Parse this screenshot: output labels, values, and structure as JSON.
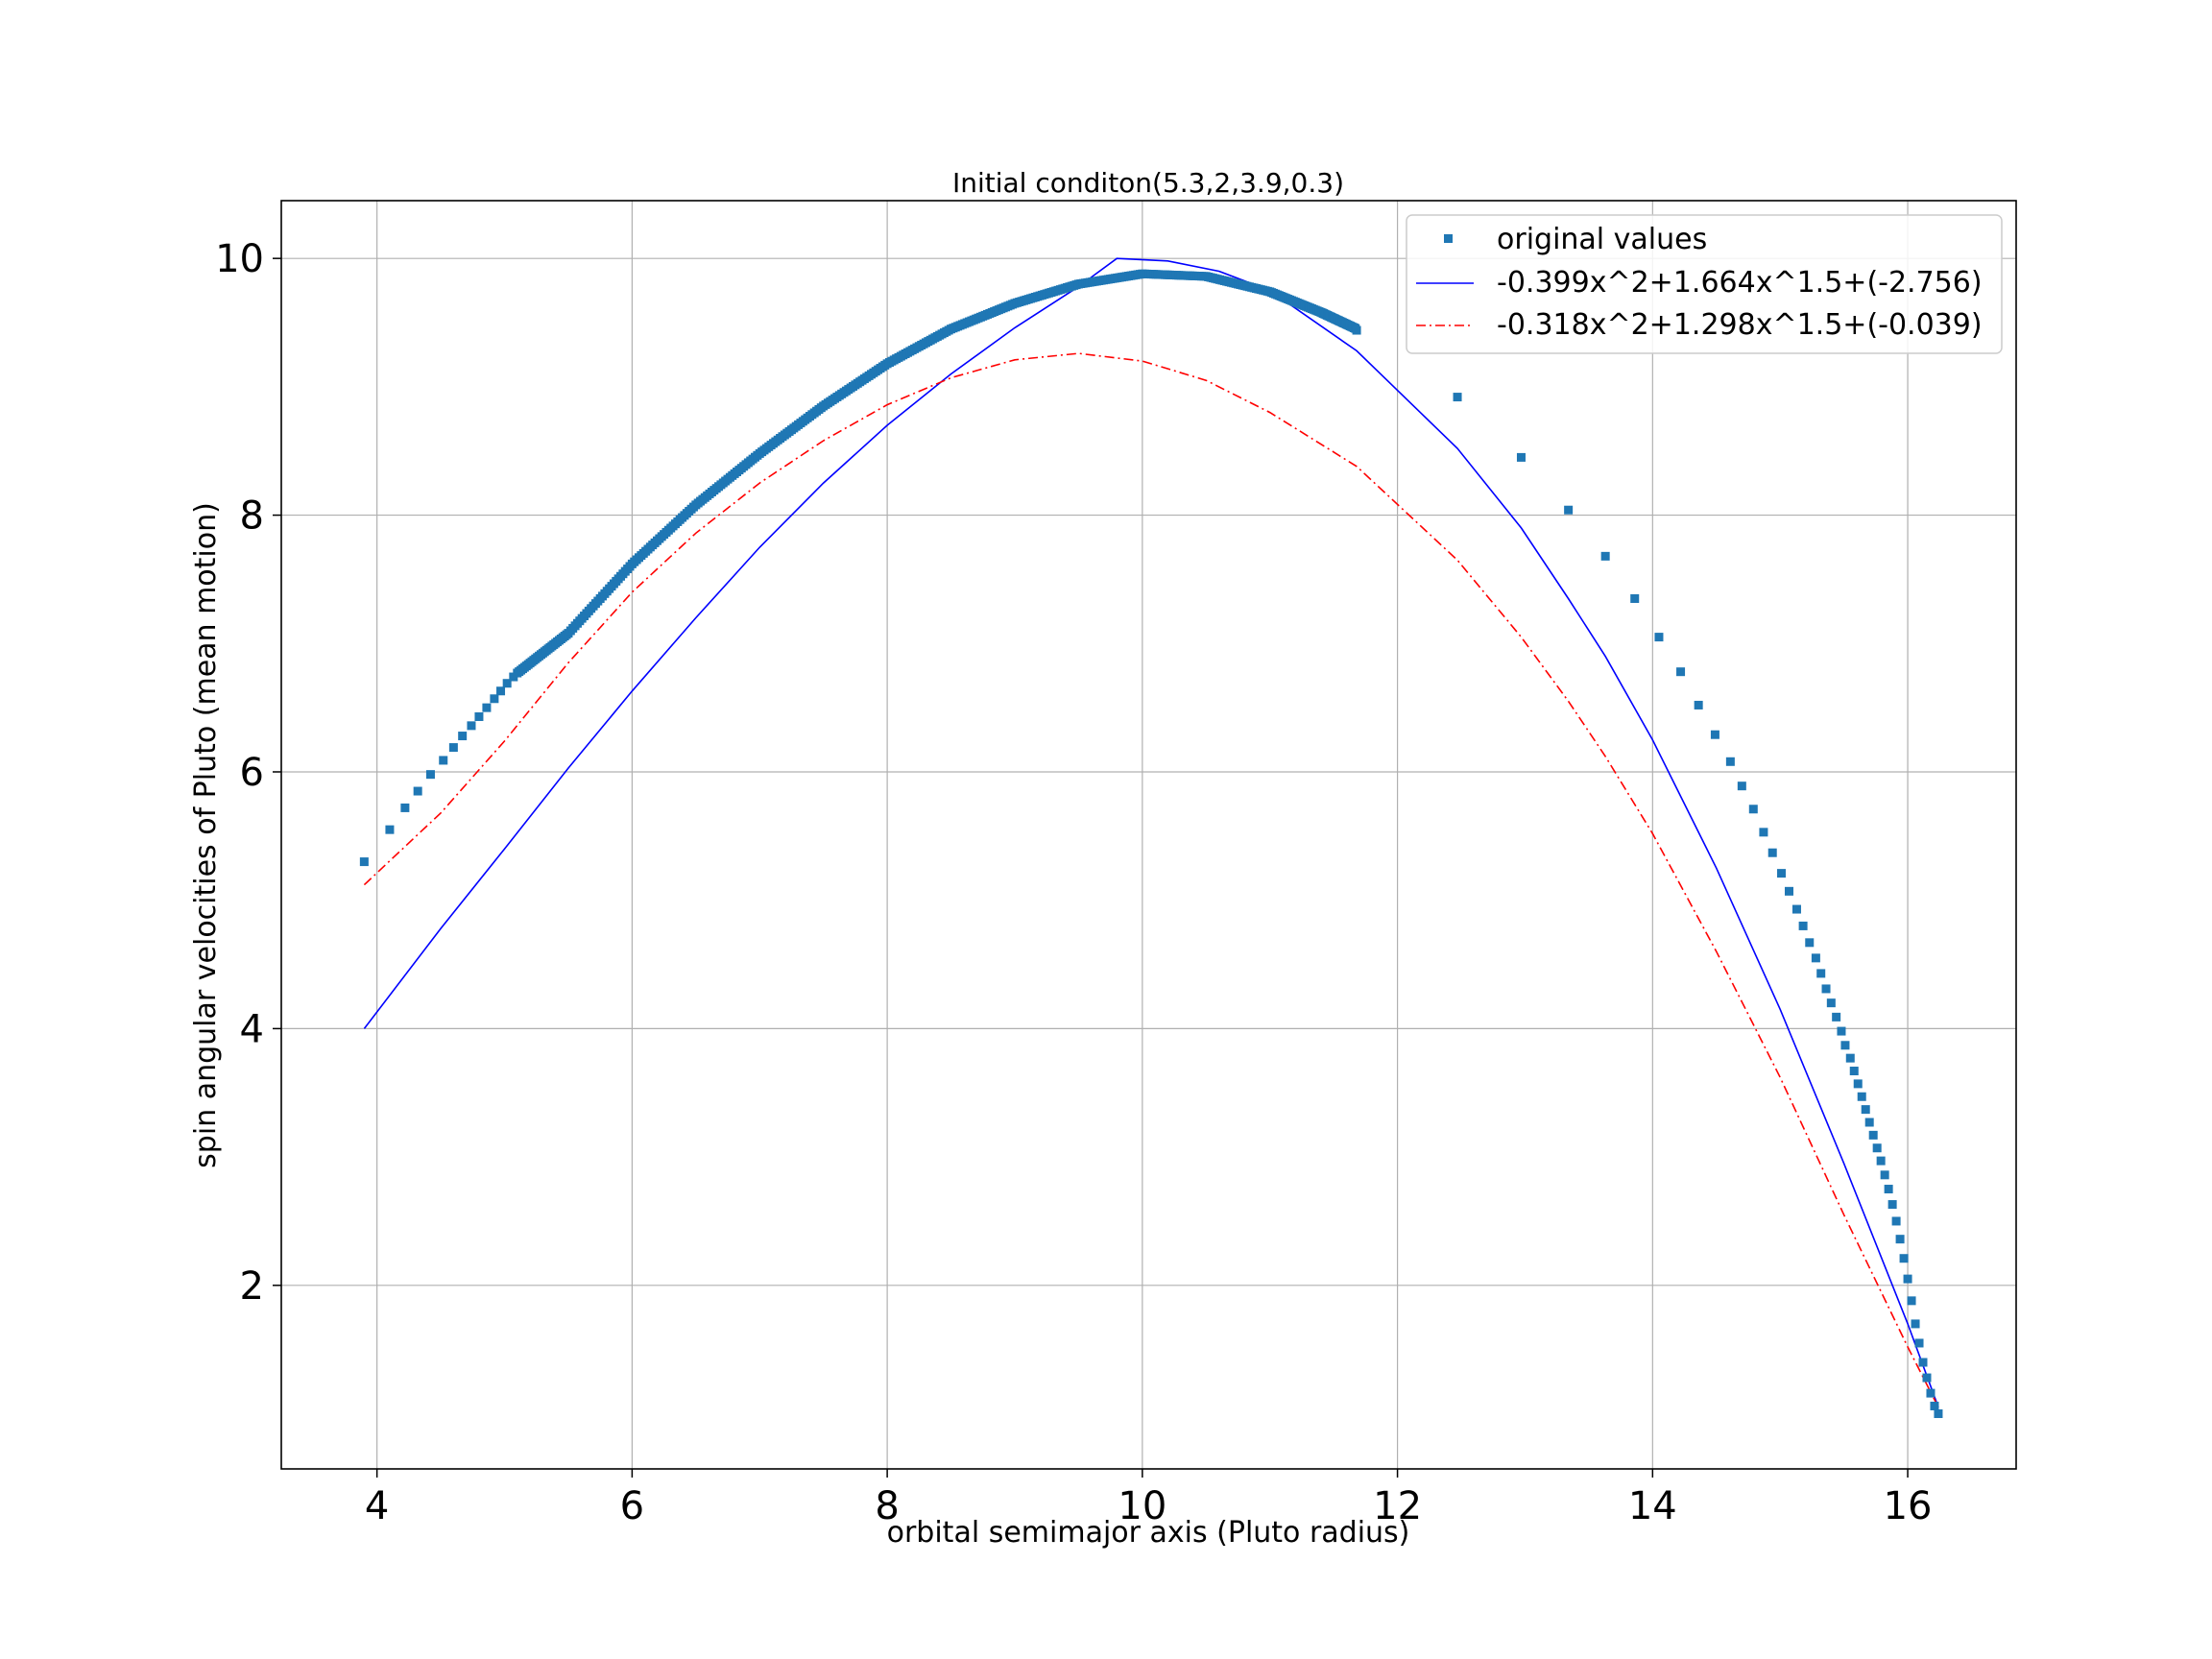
{
  "chart_data": {
    "type": "scatter",
    "title": "Initial conditon(5.3,2,3.9,0.3)",
    "xlabel": "orbital semimajor axis (Pluto radius)",
    "ylabel": "spin angular velocities of Pluto (mean motion)",
    "xlim": [
      3.25,
      16.85
    ],
    "ylim": [
      0.57,
      10.45
    ],
    "xticks": [
      4,
      6,
      8,
      10,
      12,
      14,
      16
    ],
    "yticks": [
      2,
      4,
      6,
      8,
      10
    ],
    "grid": true,
    "legend_position": "upper-right",
    "colors": {
      "scatter": "#1f77b4",
      "fit1": "#0000ff",
      "fit2": "#ff0000"
    },
    "series": [
      {
        "name": "original values",
        "kind": "scatter",
        "marker": "square",
        "points": [
          [
            3.9,
            5.3
          ],
          [
            4.1,
            5.55
          ],
          [
            4.22,
            5.72
          ],
          [
            4.32,
            5.85
          ],
          [
            4.42,
            5.98
          ],
          [
            4.52,
            6.09
          ],
          [
            4.6,
            6.19
          ],
          [
            4.67,
            6.28
          ],
          [
            4.74,
            6.36
          ],
          [
            4.8,
            6.43
          ],
          [
            4.86,
            6.5
          ],
          [
            4.92,
            6.57
          ],
          [
            4.97,
            6.63
          ],
          [
            5.02,
            6.69
          ],
          [
            5.07,
            6.74
          ],
          [
            11.68,
            9.44
          ],
          [
            12.47,
            8.92
          ],
          [
            12.97,
            8.45
          ],
          [
            13.34,
            8.04
          ],
          [
            13.63,
            7.68
          ],
          [
            13.86,
            7.35
          ],
          [
            14.05,
            7.05
          ],
          [
            14.22,
            6.78
          ],
          [
            14.36,
            6.52
          ],
          [
            14.49,
            6.29
          ],
          [
            14.61,
            6.08
          ],
          [
            14.7,
            5.89
          ],
          [
            14.79,
            5.71
          ],
          [
            14.87,
            5.53
          ],
          [
            14.94,
            5.37
          ],
          [
            15.01,
            5.21
          ],
          [
            15.07,
            5.07
          ],
          [
            15.13,
            4.93
          ],
          [
            15.18,
            4.8
          ],
          [
            15.23,
            4.67
          ],
          [
            15.28,
            4.55
          ],
          [
            15.32,
            4.43
          ],
          [
            15.36,
            4.31
          ],
          [
            15.4,
            4.2
          ],
          [
            15.44,
            4.09
          ],
          [
            15.48,
            3.98
          ],
          [
            15.51,
            3.87
          ],
          [
            15.55,
            3.77
          ],
          [
            15.58,
            3.67
          ],
          [
            15.61,
            3.57
          ],
          [
            15.64,
            3.47
          ],
          [
            15.67,
            3.37
          ],
          [
            15.7,
            3.27
          ],
          [
            15.73,
            3.17
          ],
          [
            15.76,
            3.07
          ],
          [
            15.79,
            2.97
          ],
          [
            15.82,
            2.86
          ],
          [
            15.85,
            2.75
          ],
          [
            15.88,
            2.63
          ],
          [
            15.91,
            2.5
          ],
          [
            15.94,
            2.36
          ],
          [
            15.97,
            2.21
          ],
          [
            16.0,
            2.05
          ],
          [
            16.03,
            1.88
          ],
          [
            16.06,
            1.7
          ],
          [
            16.09,
            1.55
          ],
          [
            16.12,
            1.4
          ],
          [
            16.15,
            1.28
          ],
          [
            16.18,
            1.16
          ],
          [
            16.21,
            1.06
          ],
          [
            16.24,
            1.0
          ]
        ],
        "dense_curve": [
          [
            5.1,
            6.77
          ],
          [
            5.5,
            7.08
          ],
          [
            6.0,
            7.62
          ],
          [
            6.5,
            8.08
          ],
          [
            7.0,
            8.48
          ],
          [
            7.5,
            8.85
          ],
          [
            8.0,
            9.18
          ],
          [
            8.5,
            9.45
          ],
          [
            9.0,
            9.65
          ],
          [
            9.5,
            9.8
          ],
          [
            10.0,
            9.88
          ],
          [
            10.5,
            9.86
          ],
          [
            11.0,
            9.74
          ],
          [
            11.4,
            9.58
          ],
          [
            11.68,
            9.45
          ]
        ]
      },
      {
        "name": "-0.399x^2+1.664x^1.5+(-2.756)",
        "kind": "line",
        "style": "solid",
        "points": [
          [
            3.9,
            4.0
          ],
          [
            4.5,
            4.78
          ],
          [
            5.0,
            5.4
          ],
          [
            5.5,
            6.03
          ],
          [
            6.0,
            6.63
          ],
          [
            6.5,
            7.2
          ],
          [
            7.0,
            7.75
          ],
          [
            7.5,
            8.25
          ],
          [
            8.0,
            8.7
          ],
          [
            8.5,
            9.1
          ],
          [
            9.0,
            9.46
          ],
          [
            9.5,
            9.78
          ],
          [
            9.8,
            10.0
          ],
          [
            10.2,
            9.98
          ],
          [
            10.6,
            9.9
          ],
          [
            11.0,
            9.75
          ],
          [
            11.68,
            9.28
          ],
          [
            12.47,
            8.52
          ],
          [
            12.97,
            7.9
          ],
          [
            13.34,
            7.35
          ],
          [
            13.63,
            6.9
          ],
          [
            14.0,
            6.25
          ],
          [
            14.5,
            5.25
          ],
          [
            15.0,
            4.15
          ],
          [
            15.5,
            2.95
          ],
          [
            16.0,
            1.7
          ],
          [
            16.24,
            1.05
          ]
        ]
      },
      {
        "name": "-0.318x^2+1.298x^1.5+(-0.039)",
        "kind": "line",
        "style": "dashdot",
        "points": [
          [
            3.9,
            5.12
          ],
          [
            4.5,
            5.68
          ],
          [
            5.0,
            6.24
          ],
          [
            5.5,
            6.85
          ],
          [
            6.0,
            7.4
          ],
          [
            6.5,
            7.86
          ],
          [
            7.0,
            8.25
          ],
          [
            7.5,
            8.58
          ],
          [
            8.0,
            8.86
          ],
          [
            8.5,
            9.07
          ],
          [
            9.0,
            9.21
          ],
          [
            9.5,
            9.26
          ],
          [
            10.0,
            9.2
          ],
          [
            10.5,
            9.05
          ],
          [
            11.0,
            8.8
          ],
          [
            11.68,
            8.38
          ],
          [
            12.47,
            7.65
          ],
          [
            12.97,
            7.05
          ],
          [
            13.34,
            6.55
          ],
          [
            13.63,
            6.12
          ],
          [
            14.0,
            5.52
          ],
          [
            14.5,
            4.6
          ],
          [
            15.0,
            3.62
          ],
          [
            15.5,
            2.55
          ],
          [
            16.0,
            1.52
          ],
          [
            16.24,
            1.05
          ]
        ]
      }
    ]
  }
}
